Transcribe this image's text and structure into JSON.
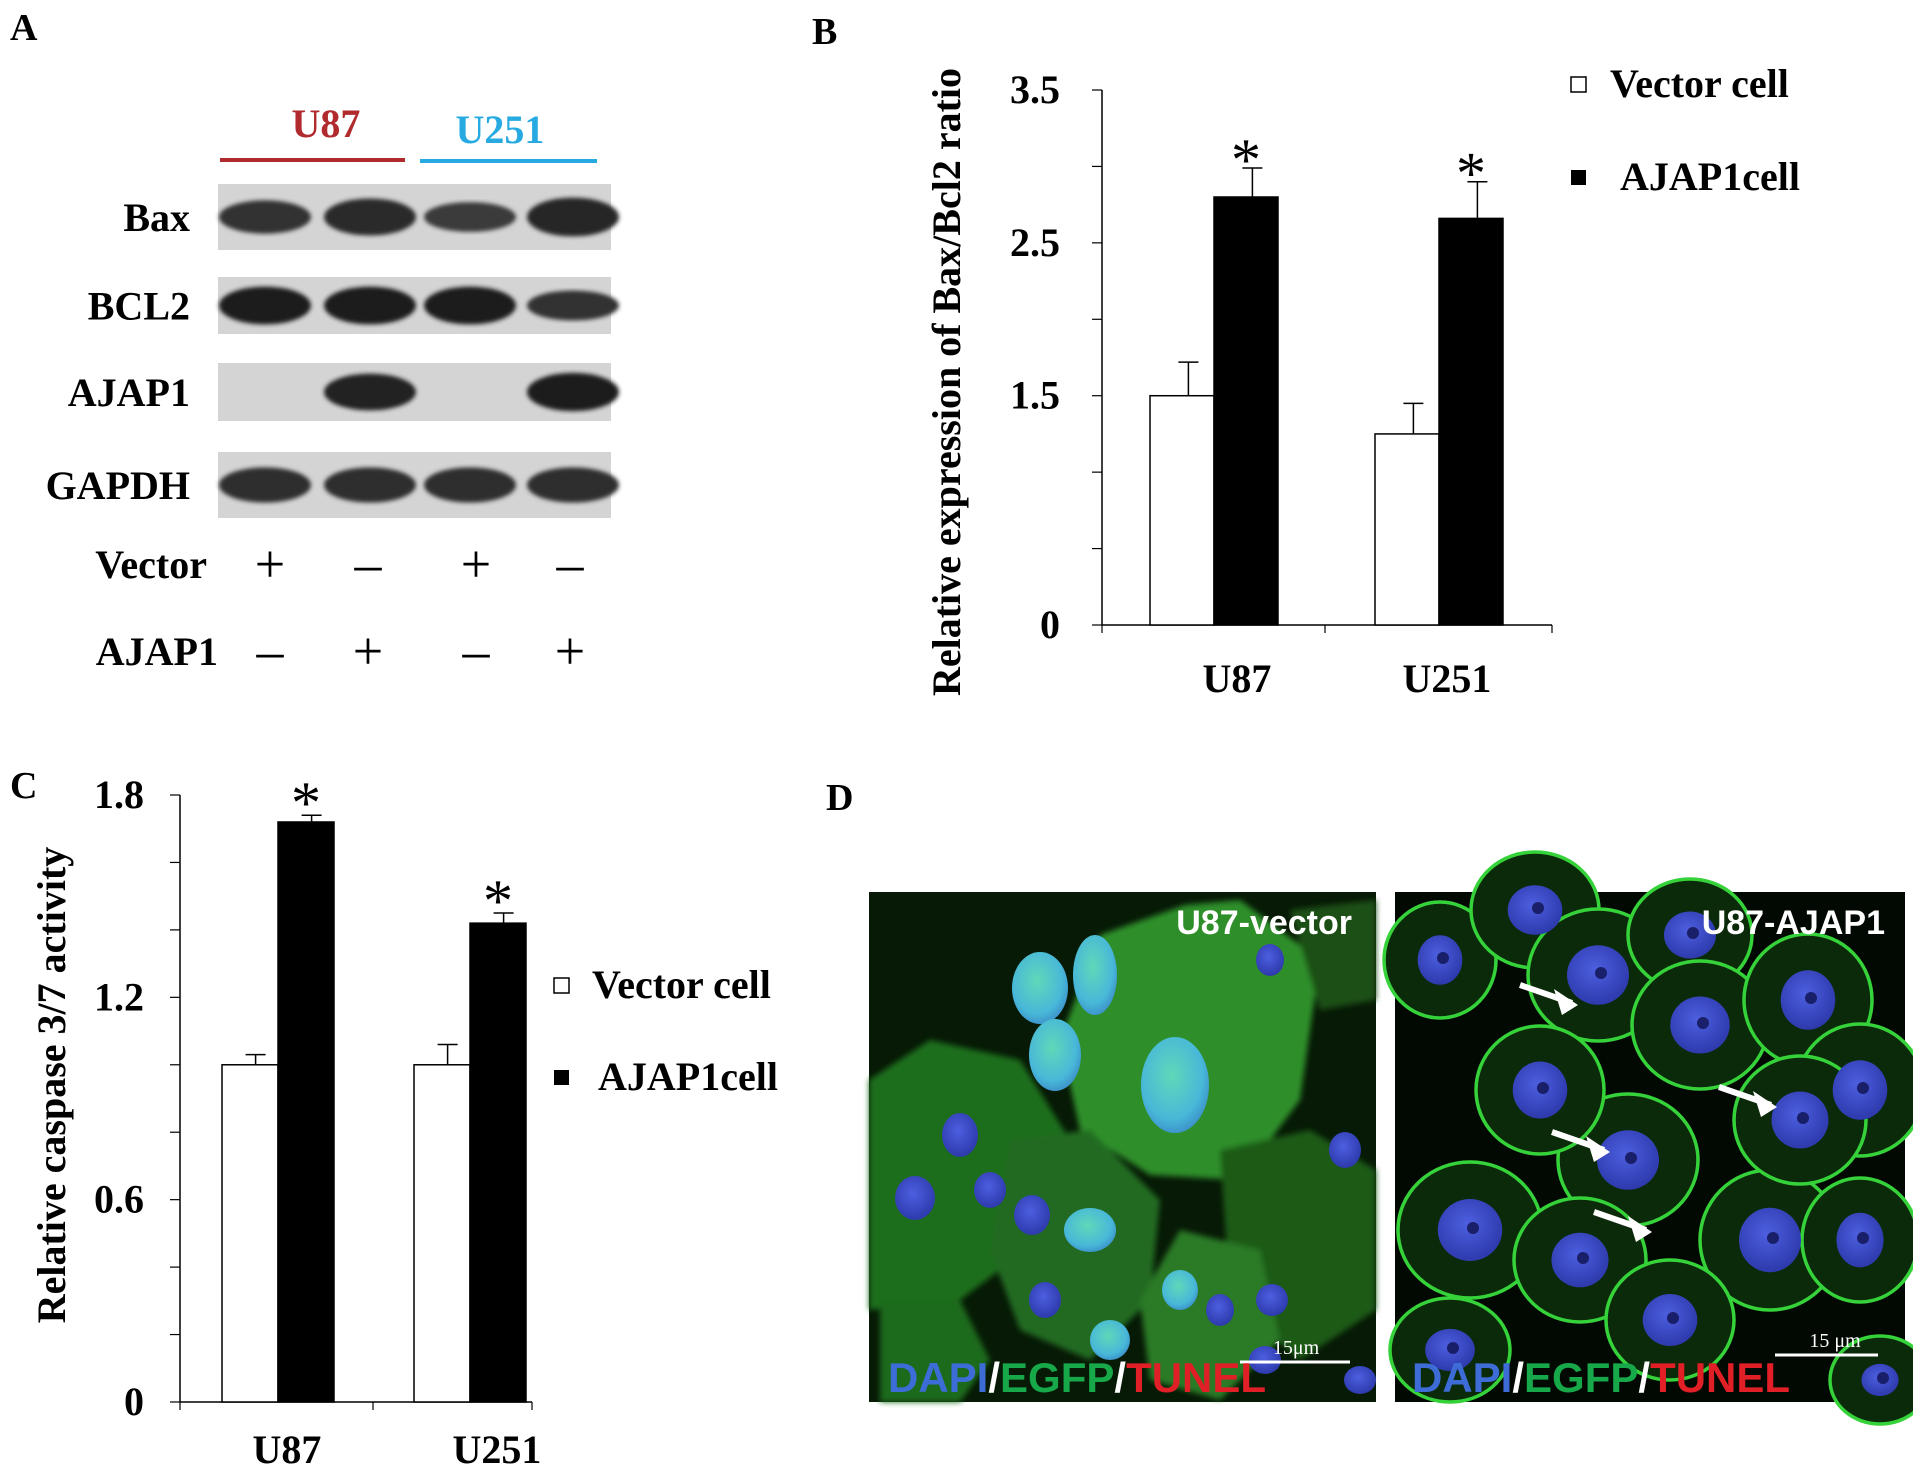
{
  "panels": {
    "A": {
      "letter": "A",
      "groups": [
        {
          "label": "U87",
          "color": "#b02a2e"
        },
        {
          "label": "U251",
          "color": "#27aae1"
        }
      ],
      "blots": [
        {
          "label": "Bax",
          "lanes": [
            0.7,
            0.8,
            0.6,
            0.85
          ]
        },
        {
          "label": "BCL2",
          "lanes": [
            0.95,
            0.95,
            0.95,
            0.7
          ]
        },
        {
          "label": "AJAP1",
          "lanes": [
            0.0,
            0.9,
            0.0,
            0.95
          ]
        },
        {
          "label": "GAPDH",
          "lanes": [
            0.75,
            0.75,
            0.75,
            0.75
          ]
        }
      ],
      "conditions": [
        {
          "label": "Vector",
          "signs": [
            "+",
            "–",
            "+",
            "–"
          ]
        },
        {
          "label": "AJAP1",
          "signs": [
            "–",
            "+",
            "–",
            "+"
          ]
        }
      ]
    },
    "B": {
      "letter": "B",
      "legend": [
        "Vector cell",
        "AJAP1cell"
      ],
      "significance": "*"
    },
    "C": {
      "letter": "C",
      "legend": [
        "Vector cell",
        "AJAP1cell"
      ],
      "significance": "*"
    },
    "D": {
      "letter": "D",
      "images": [
        {
          "title": "U87-vector",
          "scalebar": "15μm"
        },
        {
          "title": "U87-AJAP1",
          "scalebar": "15 μm"
        }
      ],
      "stain": {
        "dapi": "DAPI",
        "egfp": "EGFP",
        "tunel": "TUNEL",
        "sep": "/",
        "dapi_color": "#3d6cd6",
        "egfp_color": "#17a84a",
        "tunel_color": "#e01f26"
      }
    }
  },
  "chart_data": [
    {
      "type": "bar",
      "panel": "B",
      "categories": [
        "U87",
        "U251"
      ],
      "series": [
        {
          "name": "Vector cell",
          "values": [
            1.5,
            1.25
          ],
          "errors": [
            0.22,
            0.2
          ],
          "color": "#ffffff"
        },
        {
          "name": "AJAP1cell",
          "values": [
            2.8,
            2.66
          ],
          "errors": [
            0.19,
            0.24
          ],
          "color": "#000000"
        }
      ],
      "ylabel": "Relative expression of Bax/Bcl2 ratio",
      "ylim": [
        0,
        3.5
      ],
      "yticks": [
        0,
        1.5,
        2.5,
        3.5
      ],
      "minor_ticks": [
        0.5,
        1.0,
        2.0,
        3.0
      ],
      "grid": false,
      "legend_position": "top-right"
    },
    {
      "type": "bar",
      "panel": "C",
      "categories": [
        "U87",
        "U251"
      ],
      "series": [
        {
          "name": "Vector cell",
          "values": [
            1.0,
            1.0
          ],
          "errors": [
            0.03,
            0.06
          ],
          "color": "#ffffff"
        },
        {
          "name": "AJAP1cell",
          "values": [
            1.72,
            1.42
          ],
          "errors": [
            0.02,
            0.03
          ],
          "color": "#000000"
        }
      ],
      "ylabel": "Relative caspase 3/7 activity",
      "ylim": [
        0,
        1.8
      ],
      "yticks": [
        0,
        0.6,
        1.2,
        1.8
      ],
      "minor_ticks": [
        0.2,
        0.4,
        0.8,
        1.0,
        1.4,
        1.6
      ],
      "grid": false,
      "legend_position": "right"
    }
  ]
}
